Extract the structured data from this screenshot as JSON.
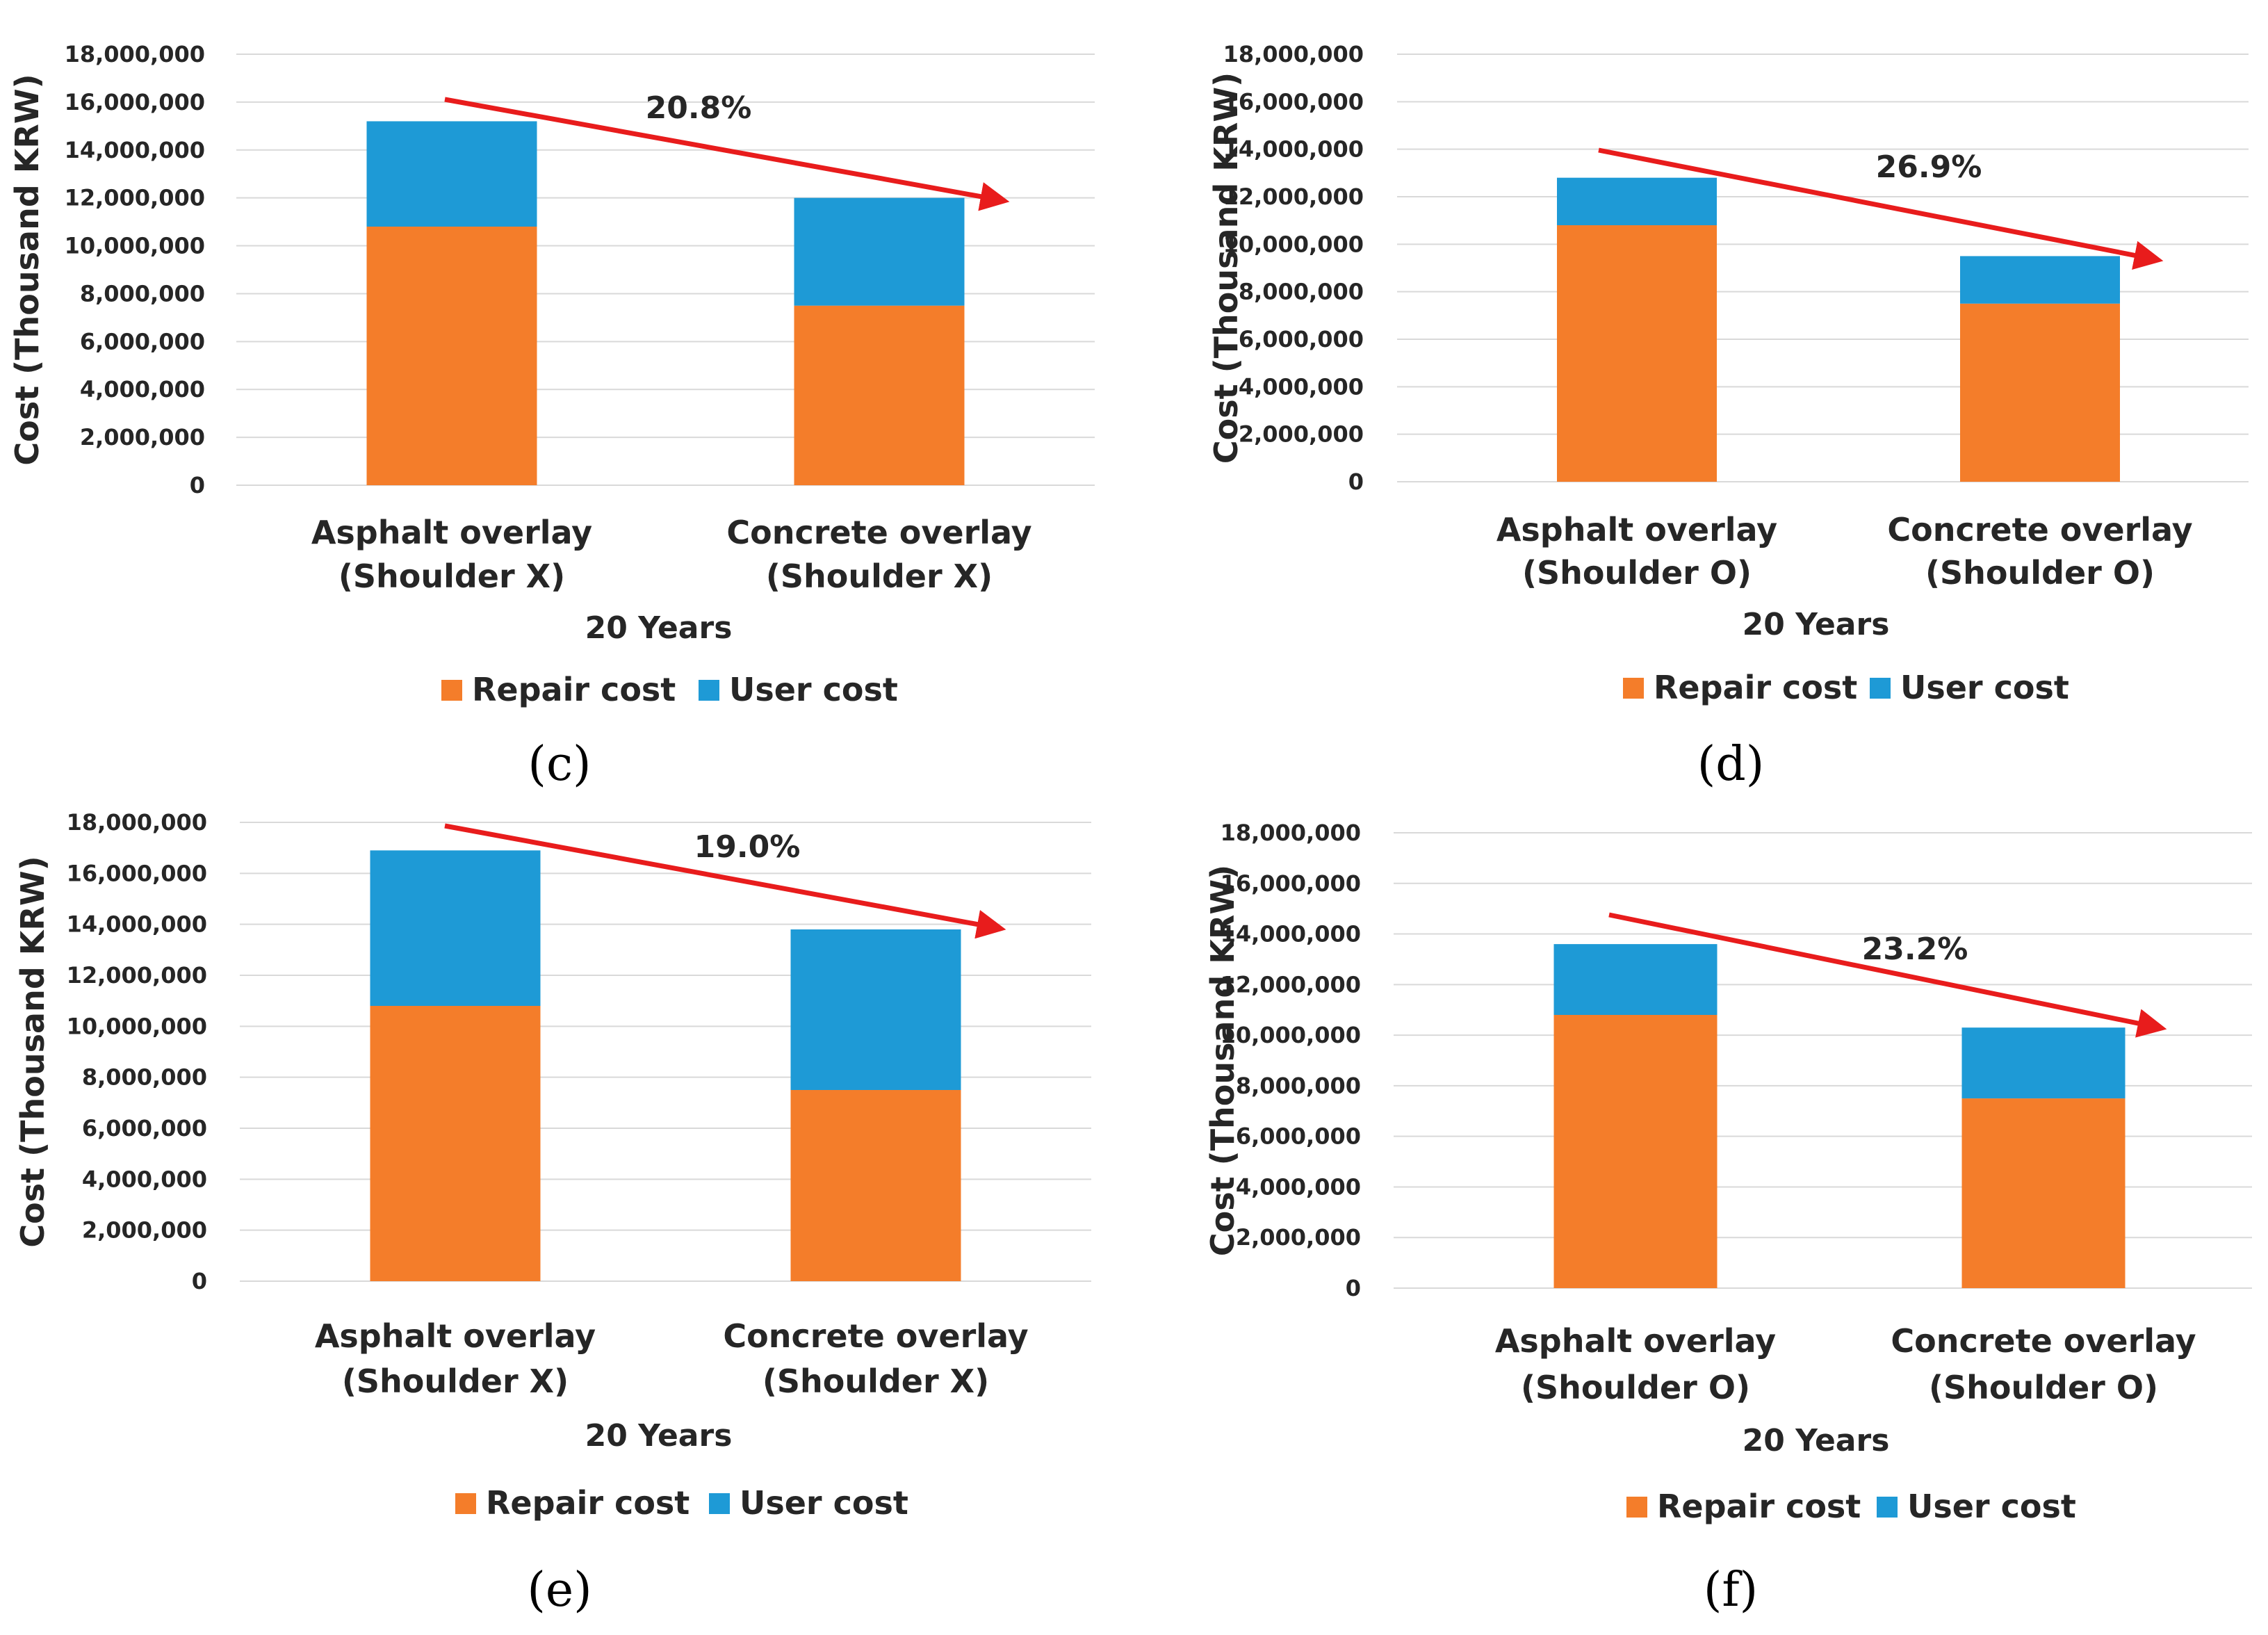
{
  "colors": {
    "repair": "#F47D2A",
    "user": "#1E9AD6",
    "arrow": "#E81C1C",
    "grid": "#D9D9D9"
  },
  "chart_data": [
    {
      "type": "bar",
      "stacked": true,
      "panel": "(c)",
      "categories": [
        [
          "Asphalt overlay",
          "(Shoulder X)"
        ],
        [
          "Concrete overlay",
          "(Shoulder X)"
        ]
      ],
      "series": [
        {
          "name": "Repair cost",
          "values": [
            10800000,
            7500000
          ]
        },
        {
          "name": "User cost",
          "values": [
            4400000,
            4500000
          ]
        }
      ],
      "xlabel": "20 Years",
      "ylabel": "Cost (Thousand KRW)",
      "ylim": [
        0,
        18000000
      ],
      "yticks": [
        "0",
        "2,000,000",
        "4,000,000",
        "6,000,000",
        "8,000,000",
        "10,000,000",
        "12,000,000",
        "14,000,000",
        "16,000,000",
        "18,000,000"
      ],
      "annotation": "20.8%",
      "legend": [
        "Repair cost",
        "User cost"
      ]
    },
    {
      "type": "bar",
      "stacked": true,
      "panel": "(d)",
      "categories": [
        [
          "Asphalt overlay",
          "(Shoulder O)"
        ],
        [
          "Concrete overlay",
          "(Shoulder O)"
        ]
      ],
      "series": [
        {
          "name": "Repair cost",
          "values": [
            10800000,
            7500000
          ]
        },
        {
          "name": "User cost",
          "values": [
            2000000,
            2000000
          ]
        }
      ],
      "xlabel": "20 Years",
      "ylabel": "Cost (Thousand KRW)",
      "ylim": [
        0,
        18000000
      ],
      "yticks": [
        "0",
        "2,000,000",
        "4,000,000",
        "6,000,000",
        "8,000,000",
        "10,000,000",
        "12,000,000",
        "14,000,000",
        "16,000,000",
        "18,000,000"
      ],
      "annotation": "26.9%",
      "legend": [
        "Repair cost",
        "User cost"
      ]
    },
    {
      "type": "bar",
      "stacked": true,
      "panel": "(e)",
      "categories": [
        [
          "Asphalt overlay",
          "(Shoulder X)"
        ],
        [
          "Concrete overlay",
          "(Shoulder X)"
        ]
      ],
      "series": [
        {
          "name": "Repair cost",
          "values": [
            10800000,
            7500000
          ]
        },
        {
          "name": "User cost",
          "values": [
            6100000,
            6300000
          ]
        }
      ],
      "xlabel": "20 Years",
      "ylabel": "Cost (Thousand KRW)",
      "ylim": [
        0,
        18000000
      ],
      "yticks": [
        "0",
        "2,000,000",
        "4,000,000",
        "6,000,000",
        "8,000,000",
        "10,000,000",
        "12,000,000",
        "14,000,000",
        "16,000,000",
        "18,000,000"
      ],
      "annotation": "19.0%",
      "legend": [
        "Repair cost",
        "User cost"
      ]
    },
    {
      "type": "bar",
      "stacked": true,
      "panel": "(f)",
      "categories": [
        [
          "Asphalt overlay",
          "(Shoulder O)"
        ],
        [
          "Concrete overlay",
          "(Shoulder O)"
        ]
      ],
      "series": [
        {
          "name": "Repair cost",
          "values": [
            10800000,
            7500000
          ]
        },
        {
          "name": "User cost",
          "values": [
            2800000,
            2800000
          ]
        }
      ],
      "xlabel": "20 Years",
      "ylabel": "Cost (Thousand KRW)",
      "ylim": [
        0,
        18000000
      ],
      "yticks": [
        "0",
        "2,000,000",
        "4,000,000",
        "6,000,000",
        "8,000,000",
        "10,000,000",
        "12,000,000",
        "14,000,000",
        "16,000,000",
        "18,000,000"
      ],
      "annotation": "23.2%",
      "legend": [
        "Repair cost",
        "User cost"
      ]
    }
  ]
}
